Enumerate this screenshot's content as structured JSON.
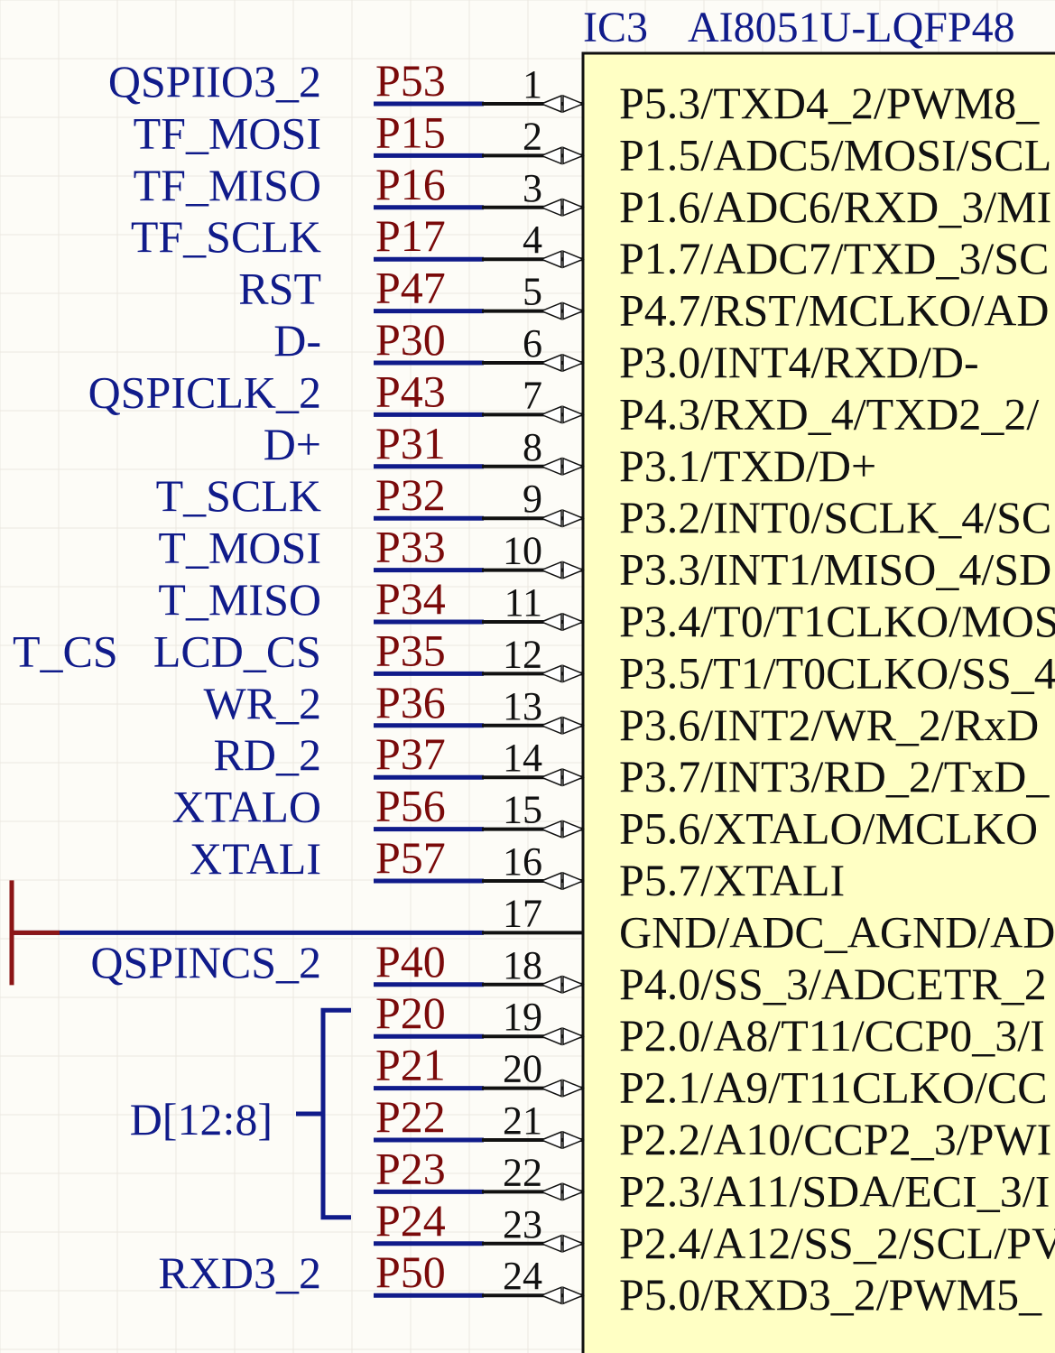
{
  "component": {
    "designator": "IC3",
    "part": "AI8051U-LQFP48"
  },
  "pins": [
    {
      "num": "1",
      "label": "QSPIIO3_2",
      "net": "P53",
      "func": "P5.3/TXD4_2/PWM8_",
      "io": true
    },
    {
      "num": "2",
      "label": "TF_MOSI",
      "net": "P15",
      "func": "P1.5/ADC5/MOSI/SCL",
      "io": true
    },
    {
      "num": "3",
      "label": "TF_MISO",
      "net": "P16",
      "func": "P1.6/ADC6/RXD_3/MI",
      "io": true
    },
    {
      "num": "4",
      "label": "TF_SCLK",
      "net": "P17",
      "func": "P1.7/ADC7/TXD_3/SC",
      "io": true
    },
    {
      "num": "5",
      "label": "RST",
      "net": "P47",
      "func": "P4.7/RST/MCLKO/AD",
      "io": true
    },
    {
      "num": "6",
      "label": "D-",
      "net": "P30",
      "func": "P3.0/INT4/RXD/D-",
      "io": true
    },
    {
      "num": "7",
      "label": "QSPICLK_2",
      "net": "P43",
      "func": "P4.3/RXD_4/TXD2_2/",
      "io": true
    },
    {
      "num": "8",
      "label": "D+",
      "net": "P31",
      "func": "P3.1/TXD/D+",
      "io": true
    },
    {
      "num": "9",
      "label": "T_SCLK",
      "net": "P32",
      "func": "P3.2/INT0/SCLK_4/SC",
      "io": true
    },
    {
      "num": "10",
      "label": "T_MOSI",
      "net": "P33",
      "func": "P3.3/INT1/MISO_4/SD",
      "io": true
    },
    {
      "num": "11",
      "label": "T_MISO",
      "net": "P34",
      "func": "P3.4/T0/T1CLKO/MOS",
      "io": true
    },
    {
      "num": "12",
      "label": "LCD_CS",
      "net": "P35",
      "func": "P3.5/T1/T0CLKO/SS_4",
      "io": true,
      "extra": "T_CS"
    },
    {
      "num": "13",
      "label": "WR_2",
      "net": "P36",
      "func": "P3.6/INT2/WR_2/RxD",
      "io": true
    },
    {
      "num": "14",
      "label": "RD_2",
      "net": "P37",
      "func": "P3.7/INT3/RD_2/TxD_",
      "io": true
    },
    {
      "num": "15",
      "label": "XTALO",
      "net": "P56",
      "func": "P5.6/XTALO/MCLKO",
      "io": true
    },
    {
      "num": "16",
      "label": "XTALI",
      "net": "P57",
      "func": "P5.7/XTALI",
      "io": true
    },
    {
      "num": "17",
      "label": "",
      "net": "",
      "func": "GND/ADC_AGND/AD",
      "io": false
    },
    {
      "num": "18",
      "label": "QSPINCS_2",
      "net": "P40",
      "func": "P4.0/SS_3/ADCETR_2",
      "io": true
    },
    {
      "num": "19",
      "label": "",
      "net": "P20",
      "func": "P2.0/A8/T11/CCP0_3/I",
      "io": true
    },
    {
      "num": "20",
      "label": "",
      "net": "P21",
      "func": "P2.1/A9/T11CLKO/CC",
      "io": true
    },
    {
      "num": "21",
      "label": "",
      "net": "P22",
      "func": "P2.2/A10/CCP2_3/PWI",
      "io": true
    },
    {
      "num": "22",
      "label": "",
      "net": "P23",
      "func": "P2.3/A11/SDA/ECI_3/I",
      "io": true
    },
    {
      "num": "23",
      "label": "",
      "net": "P24",
      "func": "P2.4/A12/SS_2/SCL/PV",
      "io": true
    },
    {
      "num": "24",
      "label": "RXD3_2",
      "net": "P50",
      "func": "P5.0/RXD3_2/PWM5_",
      "io": true
    }
  ],
  "bus": {
    "label": "D[12:8]",
    "first_pin_index": 18,
    "last_pin_index": 22
  },
  "colors": {
    "background": "#fdfcf7",
    "body_fill": "#ffffc4",
    "wire": "#101b8a",
    "net_text": "#7a0a0a",
    "pin_line": "#111111",
    "power_port": "#8b1515",
    "grid": "#ebe8e0"
  }
}
